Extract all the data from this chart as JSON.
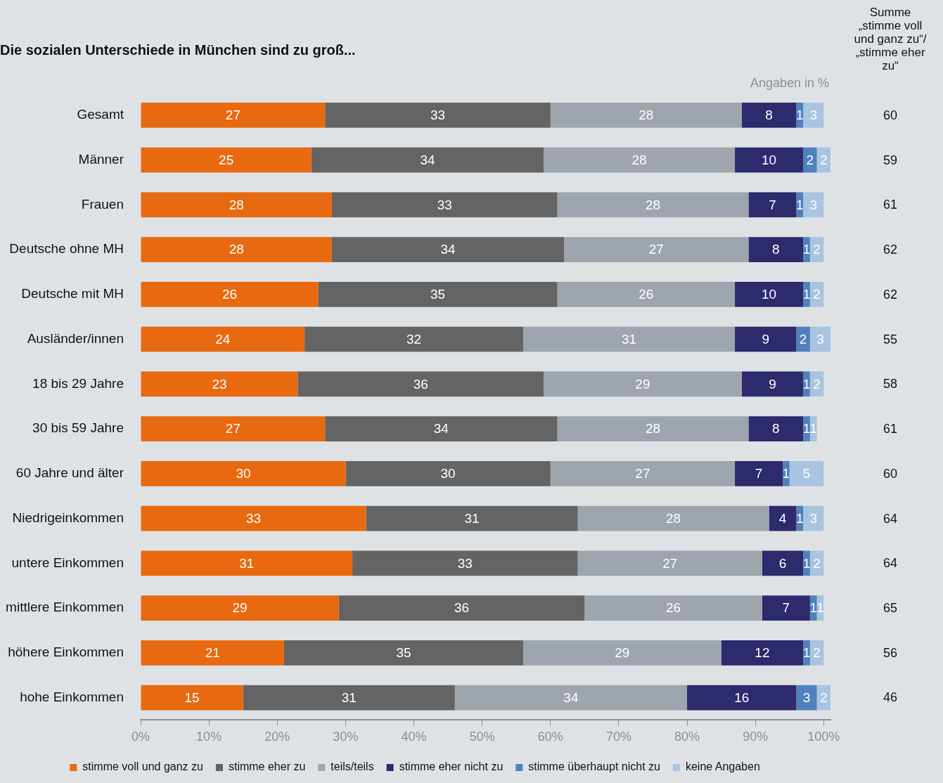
{
  "chart_data": {
    "type": "bar",
    "orientation": "horizontal",
    "stacked": true,
    "title": "Die sozialen Unterschiede in München sind zu groß...",
    "categories": [
      "Gesamt",
      "Männer",
      "Frauen",
      "Deutsche ohne MH",
      "Deutsche mit MH",
      "Ausländer/innen",
      "18 bis 29 Jahre",
      "30 bis 59 Jahre",
      "60 Jahre und älter",
      "Niedrigeinkommen",
      "untere Einkommen",
      "mittlere Einkommen",
      "höhere Einkommen",
      "hohe Einkommen"
    ],
    "series": [
      {
        "name": "stimme voll und ganz zu",
        "color": "#e8690f",
        "values": [
          27,
          25,
          28,
          28,
          26,
          24,
          23,
          27,
          30,
          33,
          31,
          29,
          21,
          15
        ]
      },
      {
        "name": "stimme eher zu",
        "color": "#646464",
        "values": [
          33,
          34,
          33,
          34,
          35,
          32,
          36,
          34,
          30,
          31,
          33,
          36,
          35,
          31
        ]
      },
      {
        "name": "teils/teils",
        "color": "#9ea5ad",
        "values": [
          28,
          28,
          28,
          27,
          26,
          31,
          29,
          28,
          27,
          28,
          27,
          26,
          29,
          34
        ]
      },
      {
        "name": "stimme eher nicht zu",
        "color": "#2e2a6e",
        "values": [
          8,
          10,
          7,
          8,
          10,
          9,
          9,
          8,
          7,
          4,
          6,
          7,
          12,
          16
        ]
      },
      {
        "name": "stimme überhaupt nicht zu",
        "color": "#4f81bd",
        "values": [
          1,
          2,
          1,
          1,
          1,
          2,
          1,
          1,
          1,
          1,
          1,
          1,
          1,
          3
        ]
      },
      {
        "name": "keine Angaben",
        "color": "#a9c4e0",
        "values": [
          3,
          2,
          3,
          2,
          2,
          3,
          2,
          1,
          5,
          3,
          2,
          1,
          2,
          2
        ]
      }
    ],
    "xlim": [
      0,
      101
    ],
    "xticks": [
      {
        "value": 0,
        "label": "0%"
      },
      {
        "value": 10,
        "label": "10%"
      },
      {
        "value": 20,
        "label": "20%"
      },
      {
        "value": 30,
        "label": "30%"
      },
      {
        "value": 40,
        "label": "40%"
      },
      {
        "value": 50,
        "label": "50%"
      },
      {
        "value": 60,
        "label": "60%"
      },
      {
        "value": 70,
        "label": "70%"
      },
      {
        "value": 80,
        "label": "80%"
      },
      {
        "value": 90,
        "label": "90%"
      },
      {
        "value": 100,
        "label": "100%"
      }
    ],
    "data_labels": true,
    "annotations": [
      "Angaben in %",
      "Summe\n„stimme voll\nund ganz zu“/\n„stimme eher\nzu“",
      "60",
      "59",
      "61",
      "62",
      "62",
      "55",
      "58",
      "61",
      "60",
      "64",
      "64",
      "65",
      "56",
      "46"
    ],
    "grid": false,
    "legend": "bottom"
  }
}
